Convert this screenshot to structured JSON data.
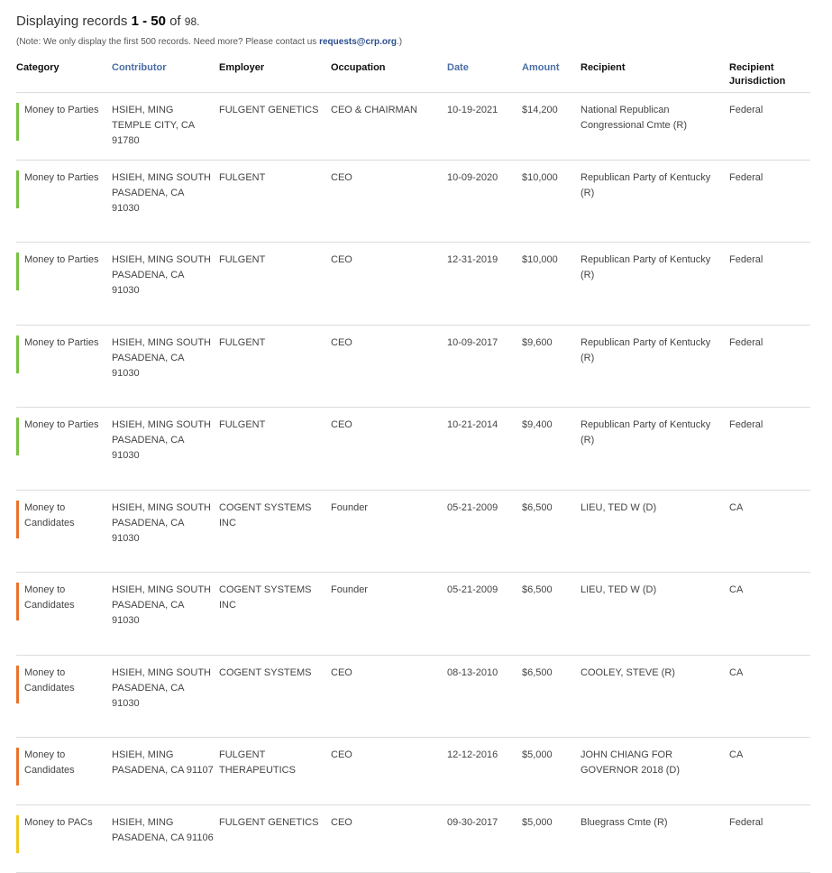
{
  "summary": {
    "prefix": "Displaying records",
    "range": "1 - 50",
    "of_label": "of",
    "total": "98."
  },
  "note": {
    "text": "(Note: We only display the first 500 records. Need more? Please contact us ",
    "link": "requests@crp.org",
    "suffix": ".)"
  },
  "table": {
    "headers": {
      "category": "Category",
      "contributor": "Contributor",
      "employer": "Employer",
      "occupation": "Occupation",
      "date": "Date",
      "amount": "Amount",
      "recipient": "Recipient",
      "jurisdiction": "Recipient Jurisdiction"
    },
    "colors": {
      "parties": "#79c142",
      "candidates": "#e8732a",
      "pacs": "#f2c81e"
    },
    "rows": [
      {
        "category": "Money to Parties",
        "type": "parties",
        "contributor": "HSIEH, MING TEMPLE CITY, CA 91780",
        "employer": "FULGENT GENETICS",
        "occupation": "CEO & CHAIRMAN",
        "date": "10-19-2021",
        "amount": "$14,200",
        "recipient": "National Republican Congressional Cmte (R)",
        "jurisdiction": "Federal",
        "height": 75
      },
      {
        "category": "Money to Parties",
        "type": "parties",
        "contributor": "HSIEH, MING SOUTH PASADENA, CA 91030",
        "employer": "FULGENT",
        "occupation": "CEO",
        "date": "10-09-2020",
        "amount": "$10,000",
        "recipient": "Republican Party of Kentucky (R)",
        "jurisdiction": "Federal",
        "height": 91
      },
      {
        "category": "Money to Parties",
        "type": "parties",
        "contributor": "HSIEH, MING SOUTH PASADENA, CA 91030",
        "employer": "FULGENT",
        "occupation": "CEO",
        "date": "12-31-2019",
        "amount": "$10,000",
        "recipient": "Republican Party of Kentucky (R)",
        "jurisdiction": "Federal",
        "height": 92
      },
      {
        "category": "Money to Parties",
        "type": "parties",
        "contributor": "HSIEH, MING SOUTH PASADENA, CA 91030",
        "employer": "FULGENT",
        "occupation": "CEO",
        "date": "10-09-2017",
        "amount": "$9,600",
        "recipient": "Republican Party of Kentucky (R)",
        "jurisdiction": "Federal",
        "height": 91
      },
      {
        "category": "Money to Parties",
        "type": "parties",
        "contributor": "HSIEH, MING SOUTH PASADENA, CA 91030",
        "employer": "FULGENT",
        "occupation": "CEO",
        "date": "10-21-2014",
        "amount": "$9,400",
        "recipient": "Republican Party of Kentucky (R)",
        "jurisdiction": "Federal",
        "height": 92
      },
      {
        "category": "Money to Candidates",
        "type": "candidates",
        "contributor": "HSIEH, MING SOUTH PASADENA, CA 91030",
        "employer": "COGENT SYSTEMS INC",
        "occupation": "Founder",
        "date": "05-21-2009",
        "amount": "$6,500",
        "recipient": "LIEU, TED W (D)",
        "jurisdiction": "CA",
        "height": 91
      },
      {
        "category": "Money to Candidates",
        "type": "candidates",
        "contributor": "HSIEH, MING SOUTH PASADENA, CA 91030",
        "employer": "COGENT SYSTEMS INC",
        "occupation": "Founder",
        "date": "05-21-2009",
        "amount": "$6,500",
        "recipient": "LIEU, TED W (D)",
        "jurisdiction": "CA",
        "height": 92
      },
      {
        "category": "Money to Candidates",
        "type": "candidates",
        "contributor": "HSIEH, MING SOUTH PASADENA, CA 91030",
        "employer": "COGENT SYSTEMS",
        "occupation": "CEO",
        "date": "08-13-2010",
        "amount": "$6,500",
        "recipient": "COOLEY, STEVE (R)",
        "jurisdiction": "CA",
        "height": 91
      },
      {
        "category": "Money to Candidates",
        "type": "candidates",
        "contributor": "HSIEH, MING PASADENA, CA 91107",
        "employer": "FULGENT THERAPEUTICS",
        "occupation": "CEO",
        "date": "12-12-2016",
        "amount": "$5,000",
        "recipient": "JOHN CHIANG FOR GOVERNOR 2018 (D)",
        "jurisdiction": "CA",
        "height": 75
      },
      {
        "category": "Money to PACs",
        "type": "pacs",
        "contributor": "HSIEH, MING PASADENA, CA 91106",
        "employer": "FULGENT GENETICS",
        "occupation": "CEO",
        "date": "09-30-2017",
        "amount": "$5,000",
        "recipient": "Bluegrass Cmte (R)",
        "jurisdiction": "Federal",
        "height": 75
      }
    ]
  }
}
